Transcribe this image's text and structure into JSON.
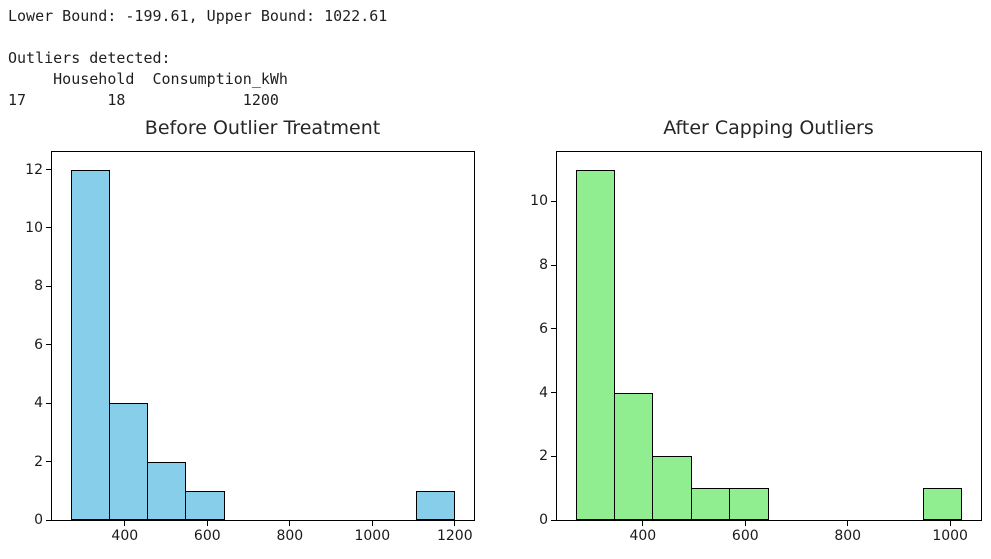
{
  "console": {
    "lines": [
      "Lower Bound: -199.61, Upper Bound: 1022.61",
      "",
      "Outliers detected:",
      "     Household  Consumption_kWh",
      "17         18             1200"
    ]
  },
  "chart_data": [
    {
      "type": "bar",
      "subtype": "histogram",
      "title": "Before Outlier Treatment",
      "xlabel": "",
      "ylabel": "",
      "bar_color": "#87CEEB",
      "edge_color": "#000000",
      "bin_edges": [
        270,
        363,
        456,
        549,
        642,
        735,
        828,
        921,
        1014,
        1107,
        1200
      ],
      "counts": [
        12,
        4,
        2,
        1,
        0,
        0,
        0,
        0,
        0,
        1
      ],
      "xlim": [
        223.5,
        1246.5
      ],
      "ylim": [
        0,
        12.6
      ],
      "xticks": [
        400,
        600,
        800,
        1000,
        1200
      ],
      "yticks": [
        0,
        2,
        4,
        6,
        8,
        10,
        12
      ],
      "grid": false,
      "legend": null
    },
    {
      "type": "bar",
      "subtype": "histogram",
      "title": "After Capping Outliers",
      "xlabel": "",
      "ylabel": "",
      "bar_color": "#90EE90",
      "edge_color": "#000000",
      "bin_edges": [
        270,
        345.26,
        420.52,
        495.78,
        571.04,
        646.31,
        721.57,
        796.83,
        872.09,
        947.35,
        1022.61
      ],
      "counts": [
        11,
        4,
        2,
        1,
        1,
        0,
        0,
        0,
        0,
        1
      ],
      "xlim": [
        232.37,
        1060.24
      ],
      "ylim": [
        0,
        11.55
      ],
      "xticks": [
        400,
        600,
        800,
        1000
      ],
      "yticks": [
        0,
        2,
        4,
        6,
        8,
        10
      ],
      "grid": false,
      "legend": null
    }
  ]
}
